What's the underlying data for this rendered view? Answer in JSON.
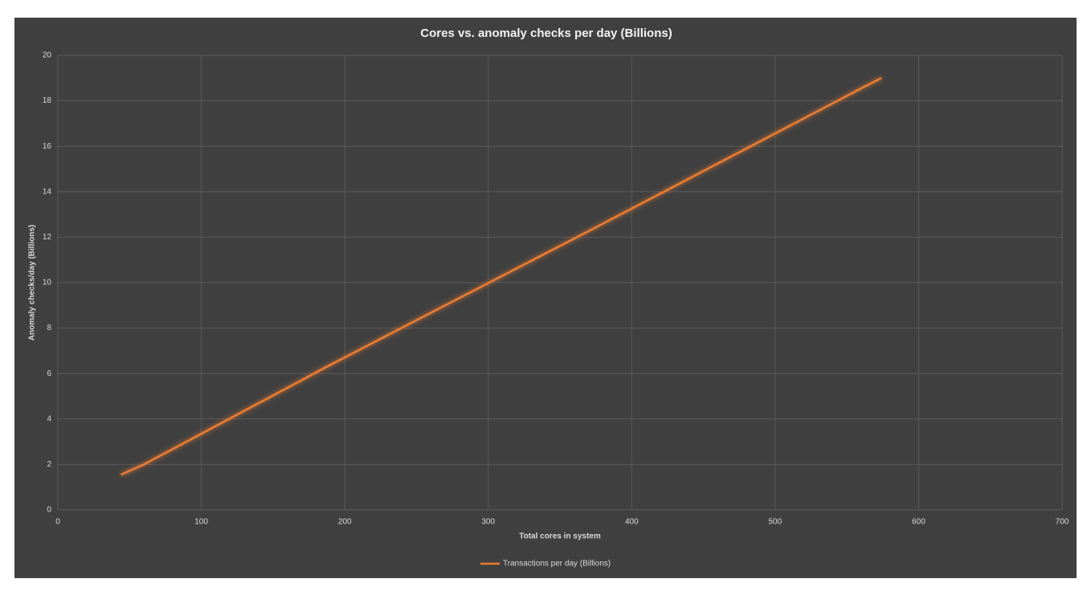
{
  "chart_data": {
    "type": "line",
    "title": "Cores vs. anomaly checks per day (Billions)",
    "x_label": "Total cores in system",
    "y_label": "Anomaly checks/day (Billions)",
    "series": [
      {
        "name": "Transactions per day (Billions)",
        "color": "#ed7d31",
        "x": [
          44,
          60,
          186,
          247,
          371,
          430,
          560,
          574
        ],
        "values": [
          1.55,
          2.0,
          6.25,
          8.25,
          12.3,
          14.25,
          18.55,
          19.0
        ]
      }
    ],
    "xlim": [
      0,
      700
    ],
    "xticks": [
      0,
      100,
      200,
      300,
      400,
      500,
      600,
      700
    ],
    "ylim": [
      0,
      20
    ],
    "yticks": [
      0,
      2,
      4,
      6,
      8,
      10,
      12,
      14,
      16,
      18,
      20
    ],
    "grid": true,
    "legend": "bottom"
  }
}
